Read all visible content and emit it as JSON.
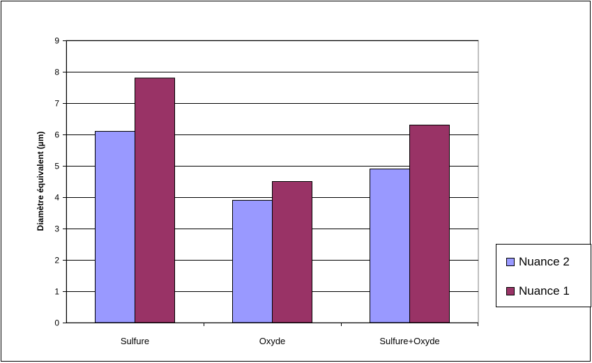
{
  "chart_data": {
    "type": "bar",
    "categories": [
      "Sulfure",
      "Oxyde",
      "Sulfure+Oxyde"
    ],
    "series": [
      {
        "name": "Nuance 2",
        "values": [
          6.1,
          3.9,
          4.9
        ],
        "color": "#9999ff"
      },
      {
        "name": "Nuance 1",
        "values": [
          7.8,
          4.5,
          6.3
        ],
        "color": "#993366"
      }
    ],
    "ylabel": "Diamètre équivalent  (µm)",
    "ylim": [
      0,
      9
    ],
    "yticks": [
      "0",
      "1",
      "2",
      "3",
      "4",
      "5",
      "6",
      "7",
      "8",
      "9"
    ],
    "grid": true,
    "legend_position": "right",
    "legend": [
      {
        "label": "Nuance 2",
        "color": "#9999ff"
      },
      {
        "label": "Nuance 1",
        "color": "#993366"
      }
    ]
  }
}
